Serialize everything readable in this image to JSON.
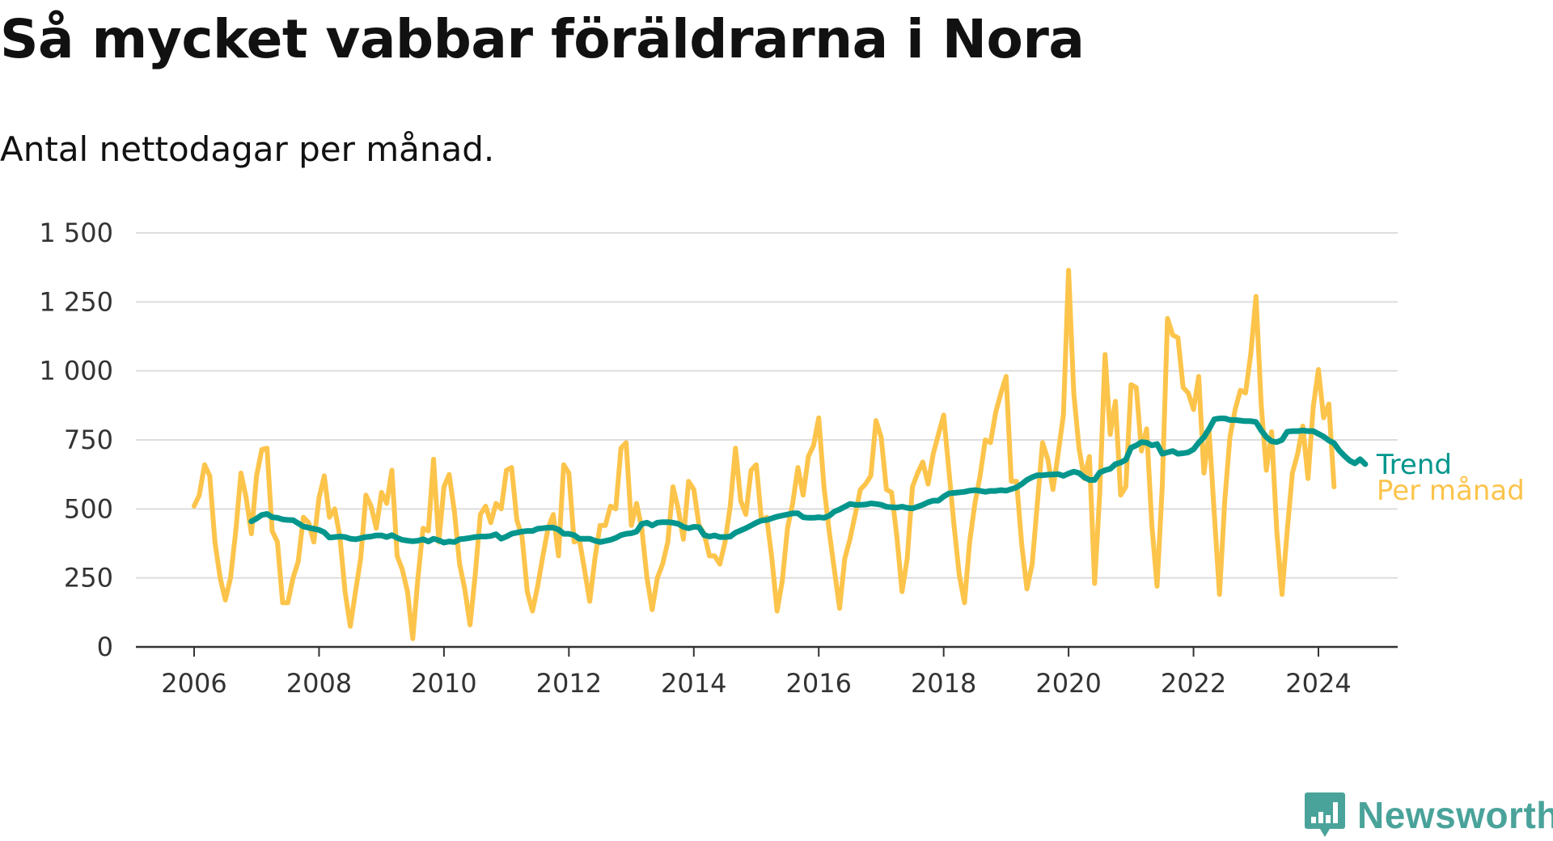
{
  "brand": {
    "name": "Newsworthy",
    "icon": "newsworthy-logo-icon",
    "color": "#4aa39a"
  },
  "chart_data": {
    "type": "line",
    "title": "Så mycket vabbar föräldrarna i Nora",
    "subtitle": "Antal nettodagar per månad.",
    "xlabel": "",
    "ylabel": "",
    "xlim": [
      2005.8,
      2025.1
    ],
    "ylim": [
      0,
      1500
    ],
    "yticks": [
      0,
      250,
      500,
      750,
      1000,
      1250,
      1500
    ],
    "ytick_labels": [
      "0",
      "250",
      "500",
      "750",
      "1 000",
      "1 250",
      "1 500"
    ],
    "xticks": [
      2006,
      2008,
      2010,
      2012,
      2014,
      2016,
      2018,
      2020,
      2022,
      2024
    ],
    "xtick_labels": [
      "2006",
      "2008",
      "2010",
      "2012",
      "2014",
      "2016",
      "2018",
      "2020",
      "2022",
      "2024"
    ],
    "grid": "horizontal",
    "legend": "end-of-line labels",
    "series": [
      {
        "name": "Per månad",
        "color": "#fcc44b",
        "start": 2006.0,
        "step_months": 1,
        "values": [
          510,
          550,
          660,
          620,
          380,
          250,
          170,
          250,
          420,
          630,
          540,
          410,
          620,
          715,
          720,
          420,
          380,
          160,
          160,
          250,
          310,
          470,
          450,
          380,
          540,
          620,
          470,
          500,
          400,
          200,
          75,
          200,
          320,
          550,
          510,
          430,
          560,
          520,
          640,
          330,
          280,
          200,
          30,
          250,
          430,
          420,
          680,
          380,
          580,
          625,
          490,
          300,
          210,
          80,
          260,
          480,
          510,
          450,
          520,
          500,
          640,
          650,
          460,
          400,
          200,
          130,
          220,
          330,
          430,
          480,
          330,
          660,
          630,
          380,
          390,
          280,
          165,
          320,
          440,
          440,
          510,
          500,
          720,
          740,
          440,
          520,
          430,
          250,
          135,
          250,
          300,
          380,
          580,
          500,
          390,
          600,
          570,
          440,
          410,
          330,
          330,
          300,
          380,
          510,
          720,
          530,
          480,
          640,
          660,
          460,
          470,
          320,
          130,
          240,
          430,
          520,
          650,
          550,
          690,
          730,
          830,
          580,
          420,
          280,
          140,
          320,
          390,
          480,
          570,
          590,
          620,
          820,
          760,
          570,
          560,
          400,
          200,
          320,
          580,
          630,
          670,
          590,
          700,
          770,
          840,
          640,
          440,
          260,
          160,
          380,
          520,
          620,
          750,
          740,
          850,
          920,
          980,
          600,
          600,
          370,
          210,
          300,
          520,
          740,
          680,
          570,
          700,
          840,
          1365,
          920,
          720,
          610,
          690,
          230,
          560,
          1060,
          770,
          890,
          550,
          580,
          950,
          940,
          710,
          790,
          440,
          220,
          580,
          1190,
          1130,
          1120,
          940,
          920,
          860,
          980,
          630,
          780,
          480,
          190,
          530,
          760,
          860,
          930,
          920,
          1060,
          1270,
          880,
          640,
          780,
          420,
          190,
          420,
          630,
          700,
          800,
          610,
          870,
          1005,
          830,
          880,
          580
        ]
      },
      {
        "name": "Trend",
        "color": "#04968d",
        "start": 2006.9167,
        "step_months": 1,
        "values": [
          455,
          465,
          478,
          482,
          470,
          468,
          462,
          460,
          459,
          448,
          436,
          432,
          428,
          424,
          415,
          396,
          398,
          400,
          398,
          392,
          390,
          394,
          398,
          400,
          404,
          404,
          398,
          405,
          395,
          388,
          385,
          383,
          385,
          390,
          382,
          392,
          386,
          378,
          382,
          380,
          390,
          392,
          395,
          398,
          400,
          400,
          402,
          408,
          392,
          400,
          410,
          414,
          418,
          420,
          420,
          428,
          430,
          432,
          432,
          425,
          410,
          410,
          405,
          392,
          392,
          392,
          385,
          380,
          384,
          388,
          395,
          405,
          410,
          412,
          418,
          446,
          450,
          440,
          450,
          452,
          452,
          450,
          446,
          435,
          430,
          435,
          434,
          405,
          400,
          404,
          398,
          398,
          400,
          414,
          422,
          430,
          440,
          450,
          458,
          460,
          466,
          472,
          476,
          480,
          484,
          484,
          470,
          468,
          468,
          470,
          468,
          475,
          490,
          498,
          508,
          518,
          515,
          515,
          516,
          520,
          518,
          515,
          508,
          506,
          505,
          508,
          504,
          502,
          508,
          515,
          524,
          530,
          530,
          545,
          556,
          558,
          560,
          562,
          566,
          568,
          565,
          562,
          565,
          565,
          568,
          566,
          572,
          578,
          590,
          605,
          615,
          622,
          622,
          624,
          625,
          626,
          620,
          628,
          635,
          630,
          615,
          605,
          605,
          632,
          640,
          645,
          662,
          668,
          678,
          722,
          730,
          742,
          740,
          730,
          735,
          700,
          705,
          710,
          700,
          702,
          705,
          716,
          740,
          760,
          790,
          825,
          828,
          828,
          822,
          822,
          820,
          818,
          818,
          815,
          785,
          760,
          745,
          742,
          750,
          780,
          782,
          782,
          784,
          782,
          782,
          772,
          762,
          748,
          738,
          712,
          692,
          675,
          665,
          680,
          662
        ]
      }
    ]
  }
}
